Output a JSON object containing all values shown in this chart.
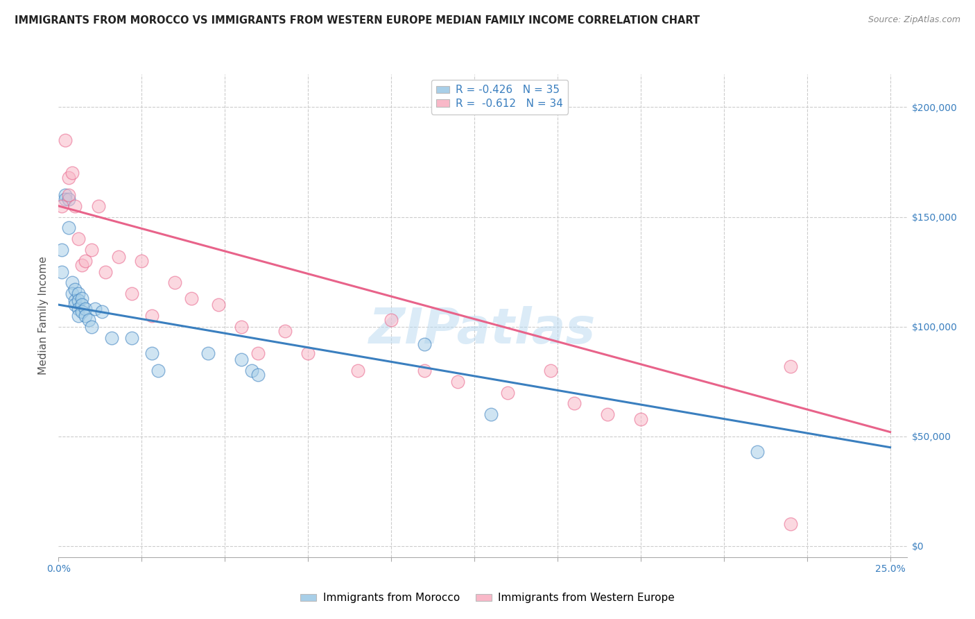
{
  "title": "IMMIGRANTS FROM MOROCCO VS IMMIGRANTS FROM WESTERN EUROPE MEDIAN FAMILY INCOME CORRELATION CHART",
  "source": "Source: ZipAtlas.com",
  "ylabel": "Median Family Income",
  "R1": -0.426,
  "N1": 35,
  "R2": -0.612,
  "N2": 34,
  "watermark": "ZIPatlas",
  "blue_color": "#a8cfe8",
  "pink_color": "#f9b8c8",
  "blue_line_color": "#3a7fbf",
  "pink_line_color": "#e8638a",
  "blue_scatter_x": [
    0.001,
    0.001,
    0.002,
    0.002,
    0.003,
    0.003,
    0.004,
    0.004,
    0.005,
    0.005,
    0.005,
    0.006,
    0.006,
    0.006,
    0.006,
    0.007,
    0.007,
    0.007,
    0.008,
    0.008,
    0.009,
    0.01,
    0.011,
    0.013,
    0.016,
    0.022,
    0.028,
    0.03,
    0.045,
    0.055,
    0.058,
    0.06,
    0.11,
    0.13,
    0.21
  ],
  "blue_scatter_y": [
    135000,
    125000,
    160000,
    158000,
    158000,
    145000,
    120000,
    115000,
    117000,
    112000,
    110000,
    115000,
    112000,
    108000,
    105000,
    113000,
    110000,
    107000,
    108000,
    105000,
    103000,
    100000,
    108000,
    107000,
    95000,
    95000,
    88000,
    80000,
    88000,
    85000,
    80000,
    78000,
    92000,
    60000,
    43000
  ],
  "pink_scatter_x": [
    0.001,
    0.002,
    0.003,
    0.003,
    0.004,
    0.005,
    0.006,
    0.007,
    0.008,
    0.01,
    0.012,
    0.014,
    0.018,
    0.022,
    0.025,
    0.028,
    0.035,
    0.04,
    0.048,
    0.055,
    0.06,
    0.068,
    0.075,
    0.09,
    0.1,
    0.11,
    0.12,
    0.135,
    0.148,
    0.155,
    0.165,
    0.175,
    0.22,
    0.22
  ],
  "pink_scatter_y": [
    155000,
    185000,
    168000,
    160000,
    170000,
    155000,
    140000,
    128000,
    130000,
    135000,
    155000,
    125000,
    132000,
    115000,
    130000,
    105000,
    120000,
    113000,
    110000,
    100000,
    88000,
    98000,
    88000,
    80000,
    103000,
    80000,
    75000,
    70000,
    80000,
    65000,
    60000,
    58000,
    82000,
    10000
  ],
  "xlim": [
    0.0,
    0.255
  ],
  "ylim": [
    -5000,
    215000
  ],
  "yticks": [
    0,
    50000,
    100000,
    150000,
    200000
  ],
  "xticks": [
    0.0,
    0.025,
    0.05,
    0.075,
    0.1,
    0.125,
    0.15,
    0.175,
    0.2,
    0.225,
    0.25
  ],
  "blue_line_x": [
    0.0,
    0.25
  ],
  "blue_line_y": [
    110000,
    45000
  ],
  "pink_line_x": [
    0.0,
    0.25
  ],
  "pink_line_y": [
    155000,
    52000
  ],
  "figsize": [
    14.06,
    8.92
  ],
  "dpi": 100
}
